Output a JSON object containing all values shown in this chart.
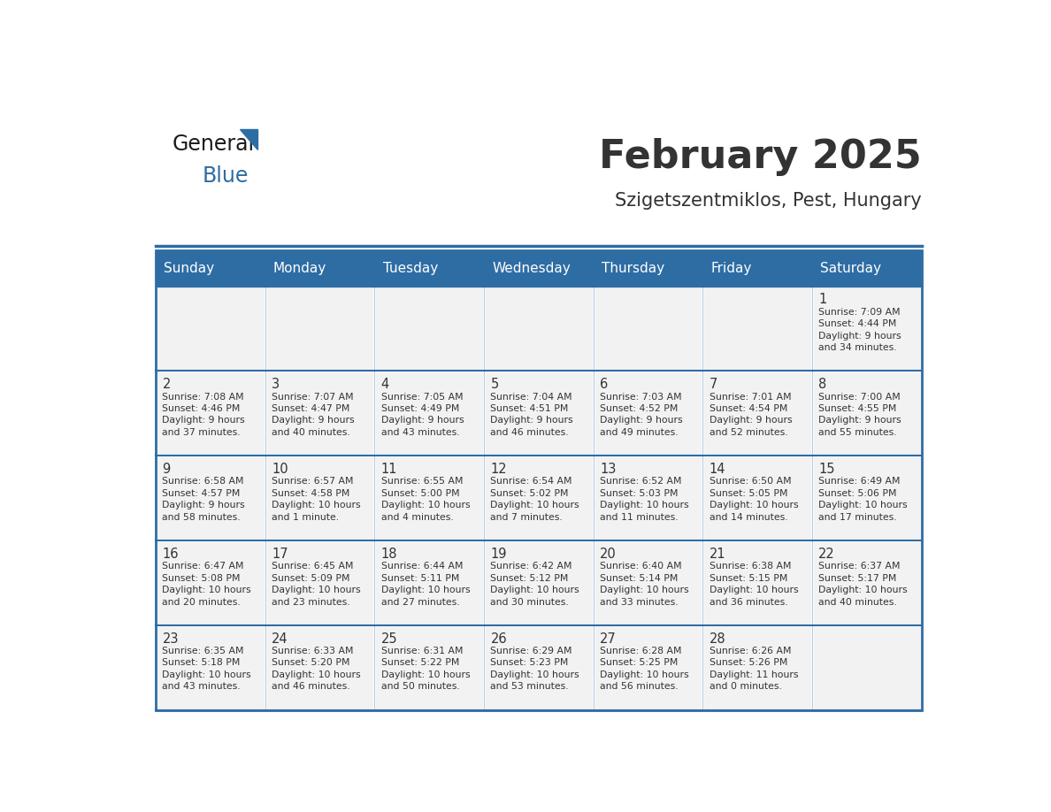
{
  "title": "February 2025",
  "subtitle": "Szigetszentmiklos, Pest, Hungary",
  "header_color": "#2E6DA4",
  "header_text_color": "#FFFFFF",
  "cell_bg_color": "#F2F2F2",
  "border_color": "#2E6DA4",
  "text_color": "#333333",
  "day_headers": [
    "Sunday",
    "Monday",
    "Tuesday",
    "Wednesday",
    "Thursday",
    "Friday",
    "Saturday"
  ],
  "days": [
    {
      "day": 1,
      "col": 6,
      "row": 0,
      "sunrise": "7:09 AM",
      "sunset": "4:44 PM",
      "daylight": "9 hours and 34 minutes."
    },
    {
      "day": 2,
      "col": 0,
      "row": 1,
      "sunrise": "7:08 AM",
      "sunset": "4:46 PM",
      "daylight": "9 hours and 37 minutes."
    },
    {
      "day": 3,
      "col": 1,
      "row": 1,
      "sunrise": "7:07 AM",
      "sunset": "4:47 PM",
      "daylight": "9 hours and 40 minutes."
    },
    {
      "day": 4,
      "col": 2,
      "row": 1,
      "sunrise": "7:05 AM",
      "sunset": "4:49 PM",
      "daylight": "9 hours and 43 minutes."
    },
    {
      "day": 5,
      "col": 3,
      "row": 1,
      "sunrise": "7:04 AM",
      "sunset": "4:51 PM",
      "daylight": "9 hours and 46 minutes."
    },
    {
      "day": 6,
      "col": 4,
      "row": 1,
      "sunrise": "7:03 AM",
      "sunset": "4:52 PM",
      "daylight": "9 hours and 49 minutes."
    },
    {
      "day": 7,
      "col": 5,
      "row": 1,
      "sunrise": "7:01 AM",
      "sunset": "4:54 PM",
      "daylight": "9 hours and 52 minutes."
    },
    {
      "day": 8,
      "col": 6,
      "row": 1,
      "sunrise": "7:00 AM",
      "sunset": "4:55 PM",
      "daylight": "9 hours and 55 minutes."
    },
    {
      "day": 9,
      "col": 0,
      "row": 2,
      "sunrise": "6:58 AM",
      "sunset": "4:57 PM",
      "daylight": "9 hours and 58 minutes."
    },
    {
      "day": 10,
      "col": 1,
      "row": 2,
      "sunrise": "6:57 AM",
      "sunset": "4:58 PM",
      "daylight": "10 hours and 1 minute."
    },
    {
      "day": 11,
      "col": 2,
      "row": 2,
      "sunrise": "6:55 AM",
      "sunset": "5:00 PM",
      "daylight": "10 hours and 4 minutes."
    },
    {
      "day": 12,
      "col": 3,
      "row": 2,
      "sunrise": "6:54 AM",
      "sunset": "5:02 PM",
      "daylight": "10 hours and 7 minutes."
    },
    {
      "day": 13,
      "col": 4,
      "row": 2,
      "sunrise": "6:52 AM",
      "sunset": "5:03 PM",
      "daylight": "10 hours and 11 minutes."
    },
    {
      "day": 14,
      "col": 5,
      "row": 2,
      "sunrise": "6:50 AM",
      "sunset": "5:05 PM",
      "daylight": "10 hours and 14 minutes."
    },
    {
      "day": 15,
      "col": 6,
      "row": 2,
      "sunrise": "6:49 AM",
      "sunset": "5:06 PM",
      "daylight": "10 hours and 17 minutes."
    },
    {
      "day": 16,
      "col": 0,
      "row": 3,
      "sunrise": "6:47 AM",
      "sunset": "5:08 PM",
      "daylight": "10 hours and 20 minutes."
    },
    {
      "day": 17,
      "col": 1,
      "row": 3,
      "sunrise": "6:45 AM",
      "sunset": "5:09 PM",
      "daylight": "10 hours and 23 minutes."
    },
    {
      "day": 18,
      "col": 2,
      "row": 3,
      "sunrise": "6:44 AM",
      "sunset": "5:11 PM",
      "daylight": "10 hours and 27 minutes."
    },
    {
      "day": 19,
      "col": 3,
      "row": 3,
      "sunrise": "6:42 AM",
      "sunset": "5:12 PM",
      "daylight": "10 hours and 30 minutes."
    },
    {
      "day": 20,
      "col": 4,
      "row": 3,
      "sunrise": "6:40 AM",
      "sunset": "5:14 PM",
      "daylight": "10 hours and 33 minutes."
    },
    {
      "day": 21,
      "col": 5,
      "row": 3,
      "sunrise": "6:38 AM",
      "sunset": "5:15 PM",
      "daylight": "10 hours and 36 minutes."
    },
    {
      "day": 22,
      "col": 6,
      "row": 3,
      "sunrise": "6:37 AM",
      "sunset": "5:17 PM",
      "daylight": "10 hours and 40 minutes."
    },
    {
      "day": 23,
      "col": 0,
      "row": 4,
      "sunrise": "6:35 AM",
      "sunset": "5:18 PM",
      "daylight": "10 hours and 43 minutes."
    },
    {
      "day": 24,
      "col": 1,
      "row": 4,
      "sunrise": "6:33 AM",
      "sunset": "5:20 PM",
      "daylight": "10 hours and 46 minutes."
    },
    {
      "day": 25,
      "col": 2,
      "row": 4,
      "sunrise": "6:31 AM",
      "sunset": "5:22 PM",
      "daylight": "10 hours and 50 minutes."
    },
    {
      "day": 26,
      "col": 3,
      "row": 4,
      "sunrise": "6:29 AM",
      "sunset": "5:23 PM",
      "daylight": "10 hours and 53 minutes."
    },
    {
      "day": 27,
      "col": 4,
      "row": 4,
      "sunrise": "6:28 AM",
      "sunset": "5:25 PM",
      "daylight": "10 hours and 56 minutes."
    },
    {
      "day": 28,
      "col": 5,
      "row": 4,
      "sunrise": "6:26 AM",
      "sunset": "5:26 PM",
      "daylight": "11 hours and 0 minutes."
    }
  ],
  "num_rows": 5,
  "num_cols": 7,
  "logo_text_general": "General",
  "logo_text_blue": "Blue",
  "logo_color_general": "#1a1a1a",
  "logo_color_blue": "#2E6DA4",
  "logo_triangle_color": "#2E6DA4"
}
